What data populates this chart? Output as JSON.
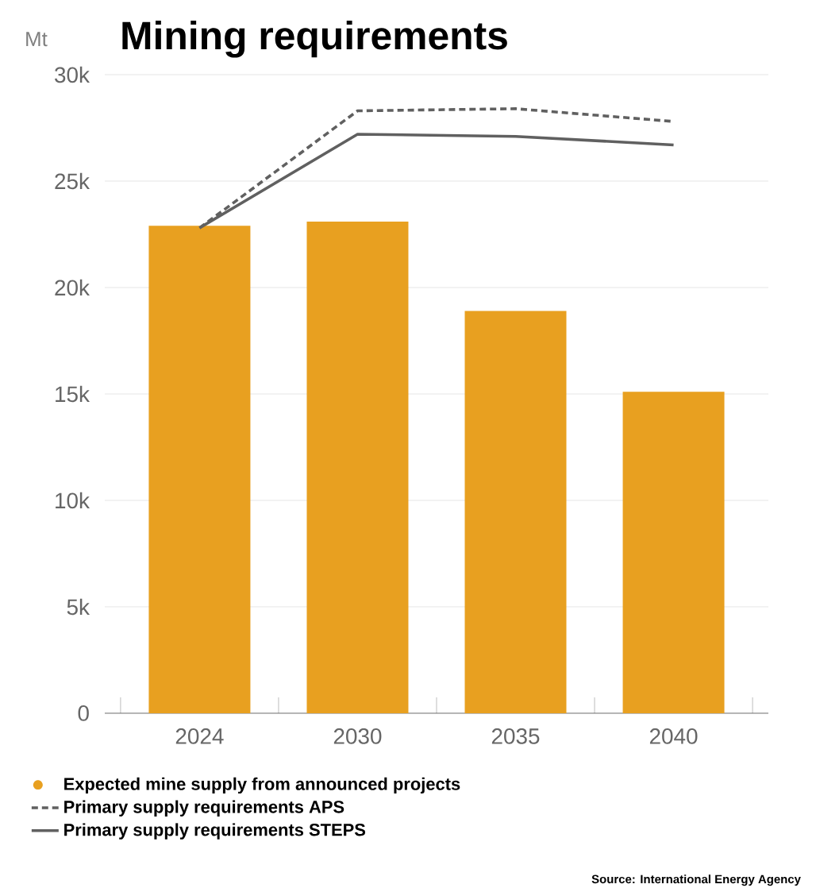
{
  "chart_data": {
    "type": "bar",
    "title": "Mining requirements",
    "ylabel": "Mt",
    "categories": [
      "2024",
      "2030",
      "2035",
      "2040"
    ],
    "series": [
      {
        "name": "Expected mine supply from announced projects",
        "color": "#e8a020",
        "values": [
          22900,
          23100,
          18900,
          15100
        ]
      },
      {
        "type": "line",
        "name": "Primary supply requirements APS",
        "color": "#606060",
        "line_style": "dashed",
        "values": [
          22800,
          28300,
          28400,
          27800
        ]
      },
      {
        "type": "line",
        "name": "Primary supply requirements STEPS",
        "color": "#606060",
        "line_style": "solid",
        "values": [
          22800,
          27200,
          27100,
          26700
        ]
      }
    ],
    "ylim": [
      0,
      30000
    ],
    "yticks": [
      0,
      {
        "value": 5000,
        "label": "5k"
      },
      {
        "value": 10000,
        "label": "10k"
      },
      {
        "value": 15000,
        "label": "15k"
      },
      {
        "value": 20000,
        "label": "20k"
      },
      {
        "value": 25000,
        "label": "25k"
      },
      {
        "value": 30000,
        "label": "30k"
      }
    ],
    "grid": "y",
    "legend": "bottom",
    "marker": "none",
    "annotations": [
      "Source: International Energy Agency"
    ]
  }
}
